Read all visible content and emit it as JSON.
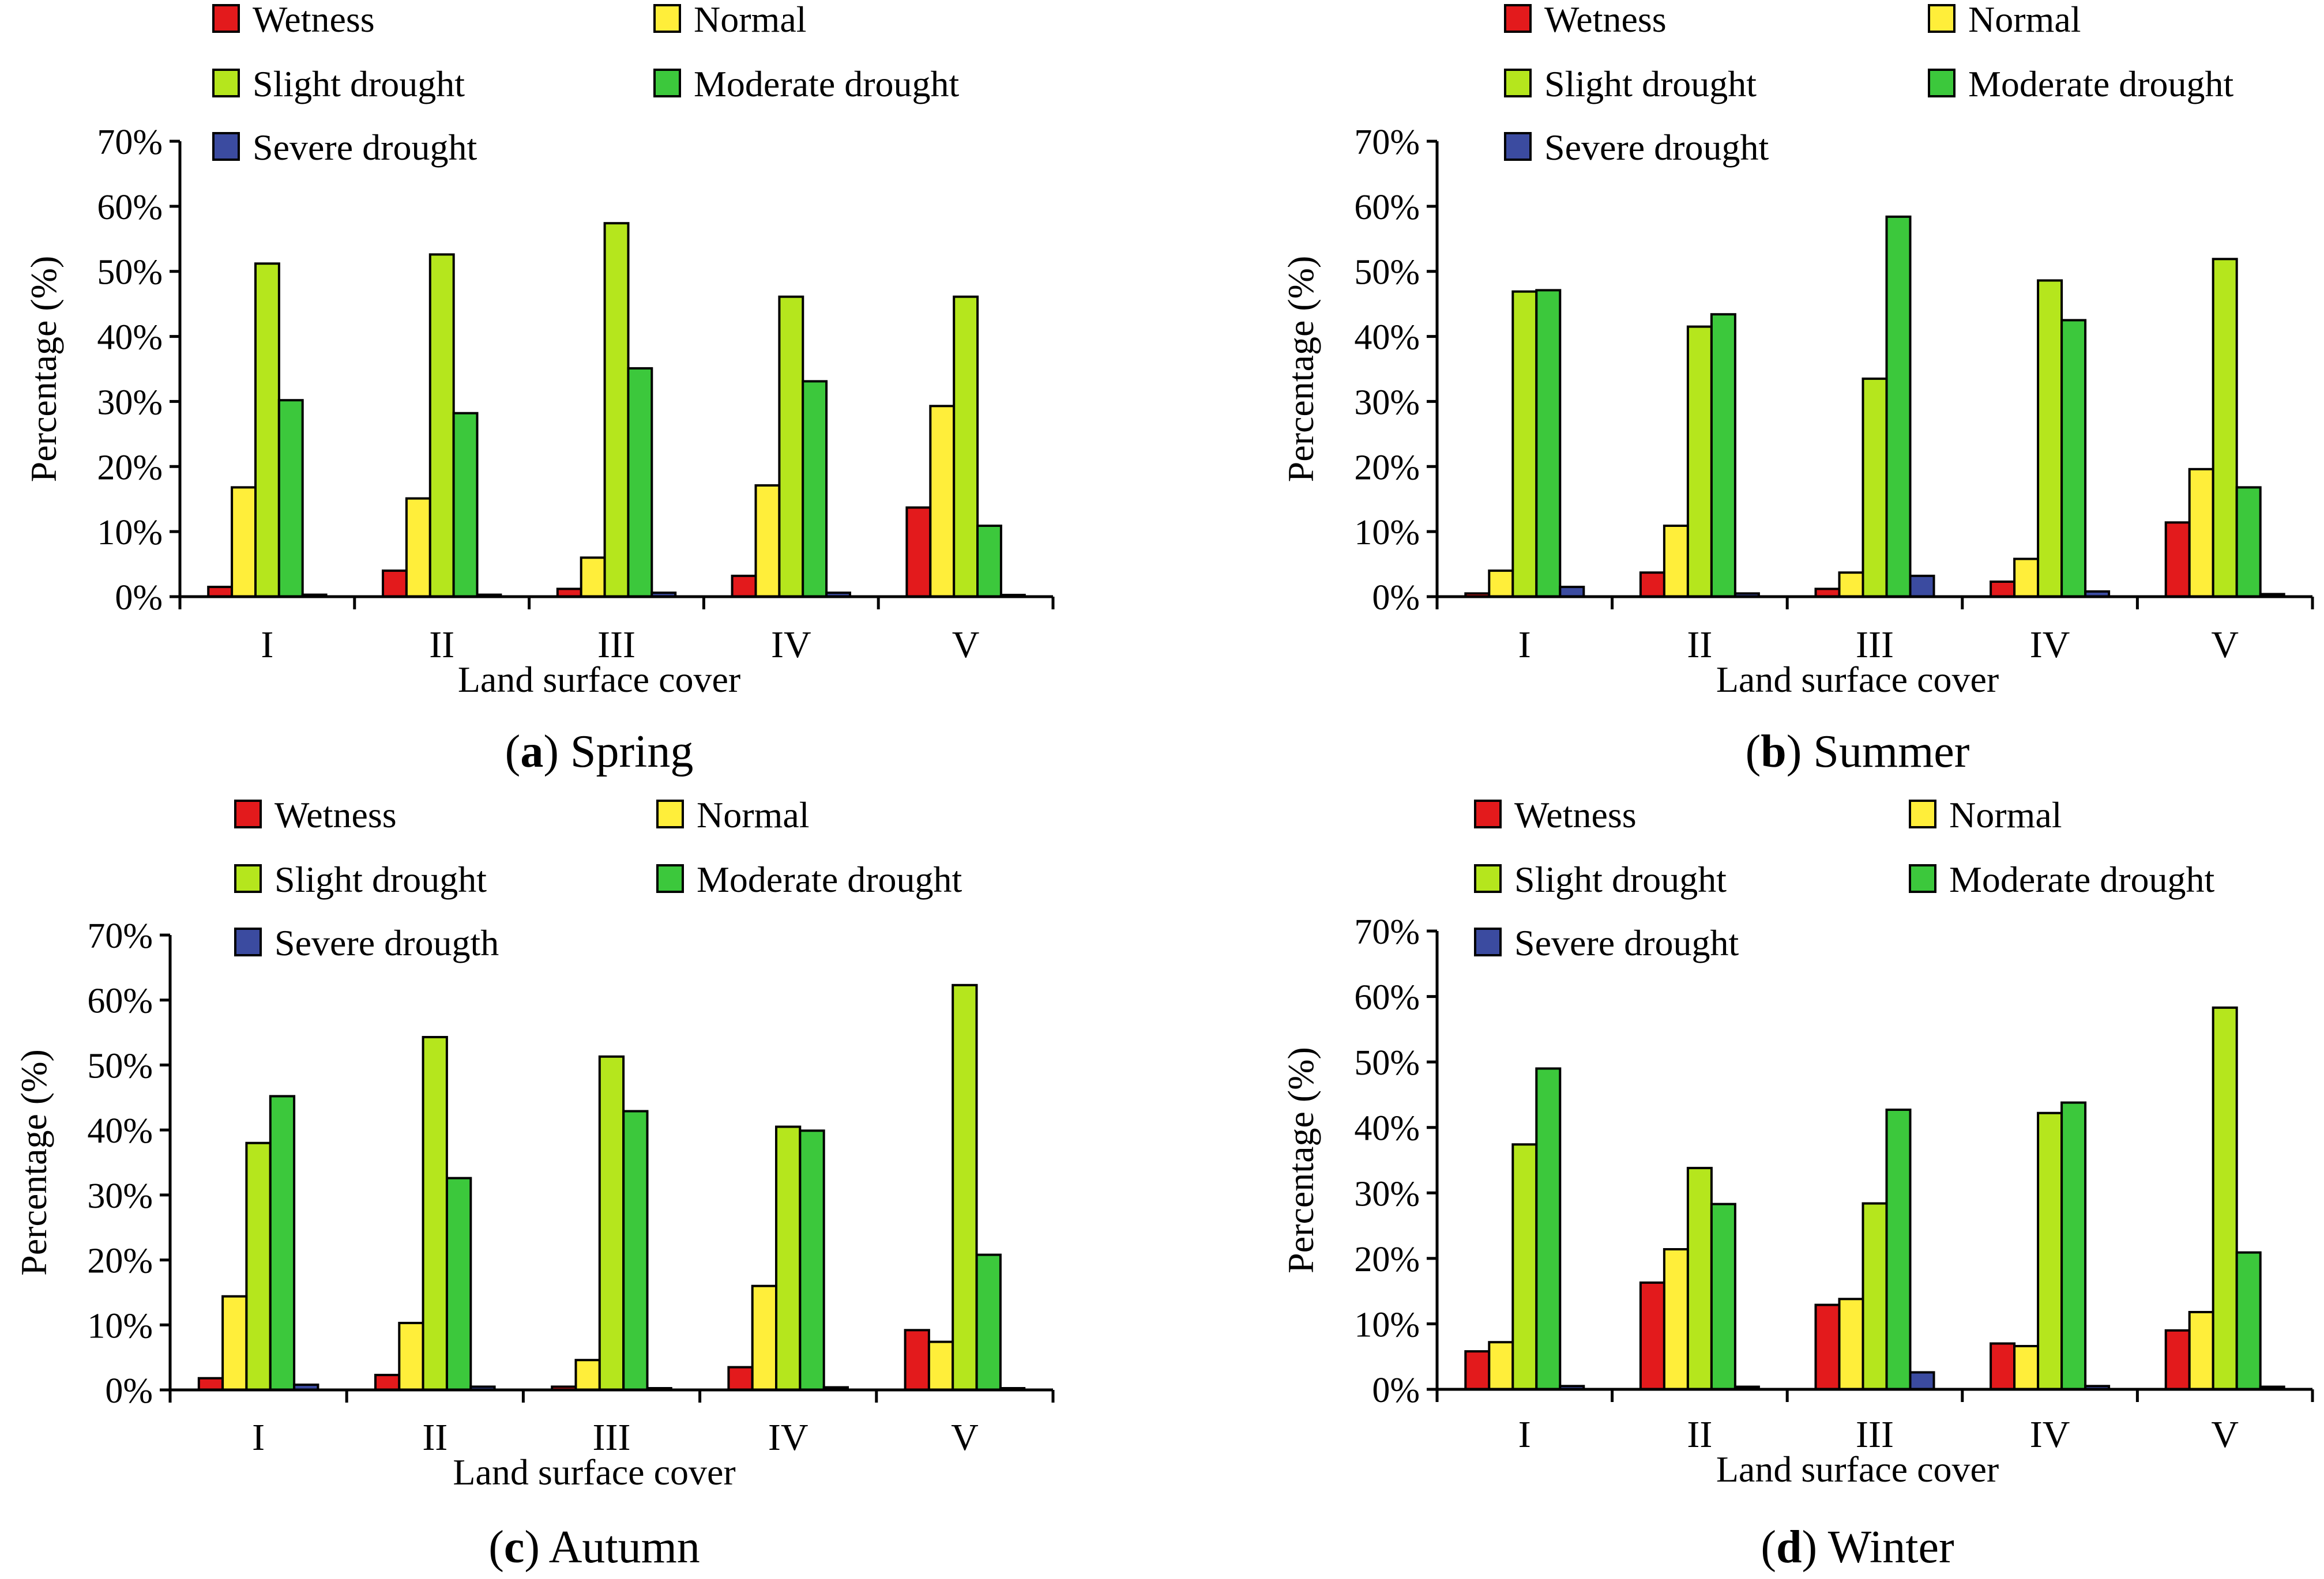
{
  "colors": {
    "wetness": "#e31a1c",
    "normal": "#ffee3a",
    "slight": "#b5e61d",
    "moderate": "#3cc83c",
    "severe": "#3b4ba0"
  },
  "chart_data": [
    {
      "type": "bar",
      "panel_letter": "a",
      "panel_title": "Spring",
      "xlabel": "Land surface cover",
      "ylabel": "Percentage (%)",
      "ylim": [
        0,
        70
      ],
      "yticks": [
        "0%",
        "10%",
        "20%",
        "30%",
        "40%",
        "50%",
        "60%",
        "70%"
      ],
      "categories": [
        "I",
        "II",
        "III",
        "IV",
        "V"
      ],
      "legend": [
        "Wetness",
        "Normal",
        "Slight drought",
        "Moderate drought",
        "Severe drought"
      ],
      "series": [
        {
          "name": "Wetness",
          "values": [
            1.5,
            4.0,
            1.2,
            3.2,
            13.7
          ]
        },
        {
          "name": "Normal",
          "values": [
            16.8,
            15.1,
            6.0,
            17.1,
            29.3
          ]
        },
        {
          "name": "Slight drought",
          "values": [
            51.2,
            52.6,
            57.4,
            46.1,
            46.1
          ]
        },
        {
          "name": "Moderate drought",
          "values": [
            30.2,
            28.2,
            35.1,
            33.1,
            10.9
          ]
        },
        {
          "name": "Severe drought",
          "values": [
            0.3,
            0.3,
            0.6,
            0.6,
            0.2
          ]
        }
      ]
    },
    {
      "type": "bar",
      "panel_letter": "b",
      "panel_title": "Summer",
      "xlabel": "Land surface cover",
      "ylabel": "Percentage (%)",
      "ylim": [
        0,
        70
      ],
      "yticks": [
        "0%",
        "10%",
        "20%",
        "30%",
        "40%",
        "50%",
        "60%",
        "70%"
      ],
      "categories": [
        "I",
        "II",
        "III",
        "IV",
        "V"
      ],
      "legend": [
        "Wetness",
        "Normal",
        "Slight drought",
        "Moderate drought",
        "Severe drought"
      ],
      "series": [
        {
          "name": "Wetness",
          "values": [
            0.5,
            3.7,
            1.2,
            2.3,
            11.4
          ]
        },
        {
          "name": "Normal",
          "values": [
            4.0,
            10.9,
            3.7,
            5.8,
            19.6
          ]
        },
        {
          "name": "Slight drought",
          "values": [
            46.9,
            41.5,
            33.5,
            48.6,
            51.9
          ]
        },
        {
          "name": "Moderate drought",
          "values": [
            47.1,
            43.4,
            58.4,
            42.5,
            16.8
          ]
        },
        {
          "name": "Severe drought",
          "values": [
            1.5,
            0.5,
            3.2,
            0.8,
            0.4
          ]
        }
      ]
    },
    {
      "type": "bar",
      "panel_letter": "c",
      "panel_title": "Autumn",
      "xlabel": "Land surface cover",
      "ylabel": "Percentage (%)",
      "ylim": [
        0,
        70
      ],
      "yticks": [
        "0%",
        "10%",
        "20%",
        "30%",
        "40%",
        "50%",
        "60%",
        "70%"
      ],
      "categories": [
        "I",
        "II",
        "III",
        "IV",
        "V"
      ],
      "legend": [
        "Wetness",
        "Normal",
        "Slight drought",
        "Moderate drought",
        "Severe drougth"
      ],
      "series": [
        {
          "name": "Wetness",
          "values": [
            1.8,
            2.3,
            0.5,
            3.5,
            9.2
          ]
        },
        {
          "name": "Normal",
          "values": [
            14.4,
            10.3,
            4.6,
            16.0,
            7.4
          ]
        },
        {
          "name": "Slight drought",
          "values": [
            38.0,
            54.3,
            51.3,
            40.5,
            62.3
          ]
        },
        {
          "name": "Moderate drought",
          "values": [
            45.2,
            32.6,
            42.9,
            39.9,
            20.8
          ]
        },
        {
          "name": "Severe drougth",
          "values": [
            0.8,
            0.5,
            0.2,
            0.4,
            0.0
          ]
        }
      ]
    },
    {
      "type": "bar",
      "panel_letter": "d",
      "panel_title": "Winter",
      "xlabel": "Land surface cover",
      "ylabel": "Percentage (%)",
      "ylim": [
        0,
        70
      ],
      "yticks": [
        "0%",
        "10%",
        "20%",
        "30%",
        "40%",
        "50%",
        "60%",
        "70%"
      ],
      "categories": [
        "I",
        "II",
        "III",
        "IV",
        "V"
      ],
      "legend": [
        "Wetness",
        "Normal",
        "Slight drought",
        "Moderate drought",
        "Severe drought"
      ],
      "series": [
        {
          "name": "Wetness",
          "values": [
            5.8,
            16.3,
            12.9,
            7.0,
            9.0
          ]
        },
        {
          "name": "Normal",
          "values": [
            7.2,
            21.4,
            13.8,
            6.6,
            11.8
          ]
        },
        {
          "name": "Slight drought",
          "values": [
            37.4,
            33.8,
            28.4,
            42.2,
            58.3
          ]
        },
        {
          "name": "Moderate drought",
          "values": [
            49.0,
            28.3,
            42.7,
            43.8,
            20.9
          ]
        },
        {
          "name": "Severe drought",
          "values": [
            0.5,
            0.4,
            2.6,
            0.5,
            0.4
          ]
        }
      ]
    }
  ]
}
